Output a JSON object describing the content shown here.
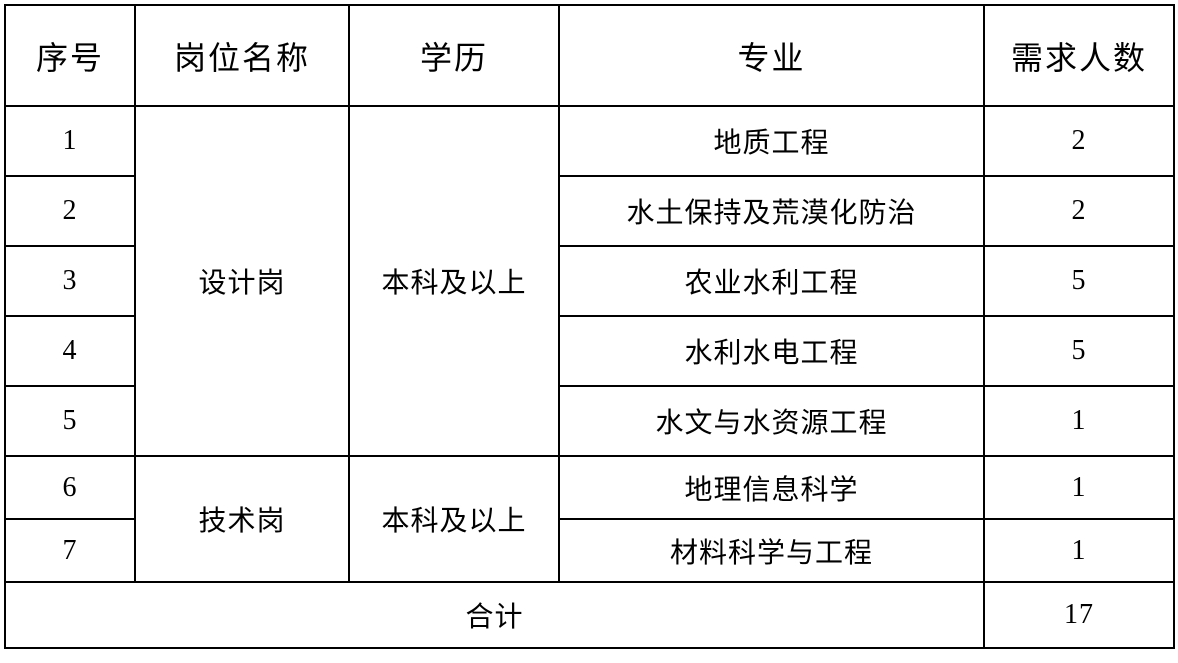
{
  "colors": {
    "background": "#ffffff",
    "border": "#000000",
    "text": "#000000"
  },
  "table": {
    "headers": {
      "seq": "序号",
      "position": "岗位名称",
      "education": "学历",
      "major": "专业",
      "headcount": "需求人数"
    },
    "groups": [
      {
        "position": "设计岗",
        "education": "本科及以上",
        "rows": [
          {
            "seq": "1",
            "major": "地质工程",
            "headcount": "2"
          },
          {
            "seq": "2",
            "major": "水土保持及荒漠化防治",
            "headcount": "2"
          },
          {
            "seq": "3",
            "major": "农业水利工程",
            "headcount": "5"
          },
          {
            "seq": "4",
            "major": "水利水电工程",
            "headcount": "5"
          },
          {
            "seq": "5",
            "major": "水文与水资源工程",
            "headcount": "1"
          }
        ]
      },
      {
        "position": "技术岗",
        "education": "本科及以上",
        "rows": [
          {
            "seq": "6",
            "major": "地理信息科学",
            "headcount": "1"
          },
          {
            "seq": "7",
            "major": "材料科学与工程",
            "headcount": "1"
          }
        ]
      }
    ],
    "total": {
      "label": "合计",
      "value": "17"
    }
  },
  "chart_data": {
    "type": "table",
    "title": "",
    "columns": [
      "序号",
      "岗位名称",
      "学历",
      "专业",
      "需求人数"
    ],
    "rows": [
      [
        "1",
        "设计岗",
        "本科及以上",
        "地质工程",
        2
      ],
      [
        "2",
        "设计岗",
        "本科及以上",
        "水土保持及荒漠化防治",
        2
      ],
      [
        "3",
        "设计岗",
        "本科及以上",
        "农业水利工程",
        5
      ],
      [
        "4",
        "设计岗",
        "本科及以上",
        "水利水电工程",
        5
      ],
      [
        "5",
        "设计岗",
        "本科及以上",
        "水文与水资源工程",
        1
      ],
      [
        "6",
        "技术岗",
        "本科及以上",
        "地理信息科学",
        1
      ],
      [
        "7",
        "技术岗",
        "本科及以上",
        "材料科学与工程",
        1
      ]
    ],
    "total": [
      "合计",
      17
    ]
  }
}
